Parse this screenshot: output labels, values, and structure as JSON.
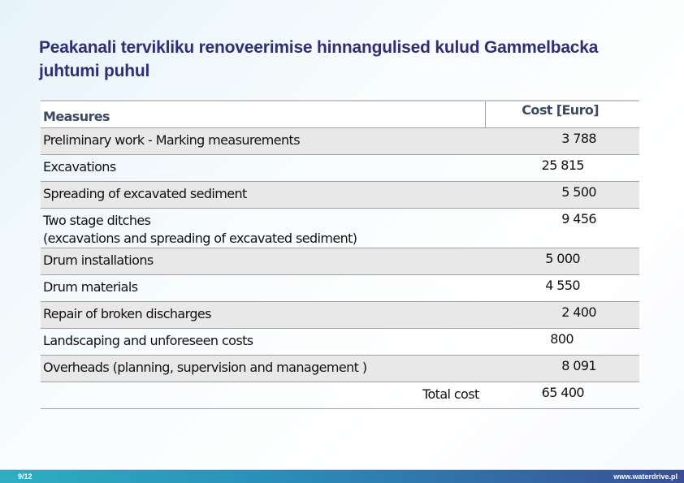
{
  "title": "Peakanali tervikliku renoveerimise hinnangulised kulud Gammelbacka juhtumi puhul",
  "table": {
    "headers": [
      "Measures",
      "Cost [Euro]"
    ],
    "rows": [
      {
        "measure": "Preliminary work - Marking measurements",
        "cost": "3 788"
      },
      {
        "measure": "Excavations",
        "cost": "25 815"
      },
      {
        "measure": "Spreading of excavated sediment",
        "cost": "5 500"
      },
      {
        "measure": "Two stage ditches",
        "measure_line2": "(excavations and spreading of excavated sediment)",
        "cost": "9 456"
      },
      {
        "measure": "Drum installations",
        "cost": "5 000"
      },
      {
        "measure": "Drum materials",
        "cost": "4 550"
      },
      {
        "measure": "Repair of broken discharges",
        "cost": "2 400"
      },
      {
        "measure": "Landscaping and unforeseen costs",
        "cost": "800"
      },
      {
        "measure": "Overheads (planning, supervision and management )",
        "cost": "8 091"
      }
    ],
    "total_label": "Total cost",
    "total_value": "65 400"
  },
  "footer": {
    "page": "9/12",
    "url": "www.waterdrive.pl"
  }
}
